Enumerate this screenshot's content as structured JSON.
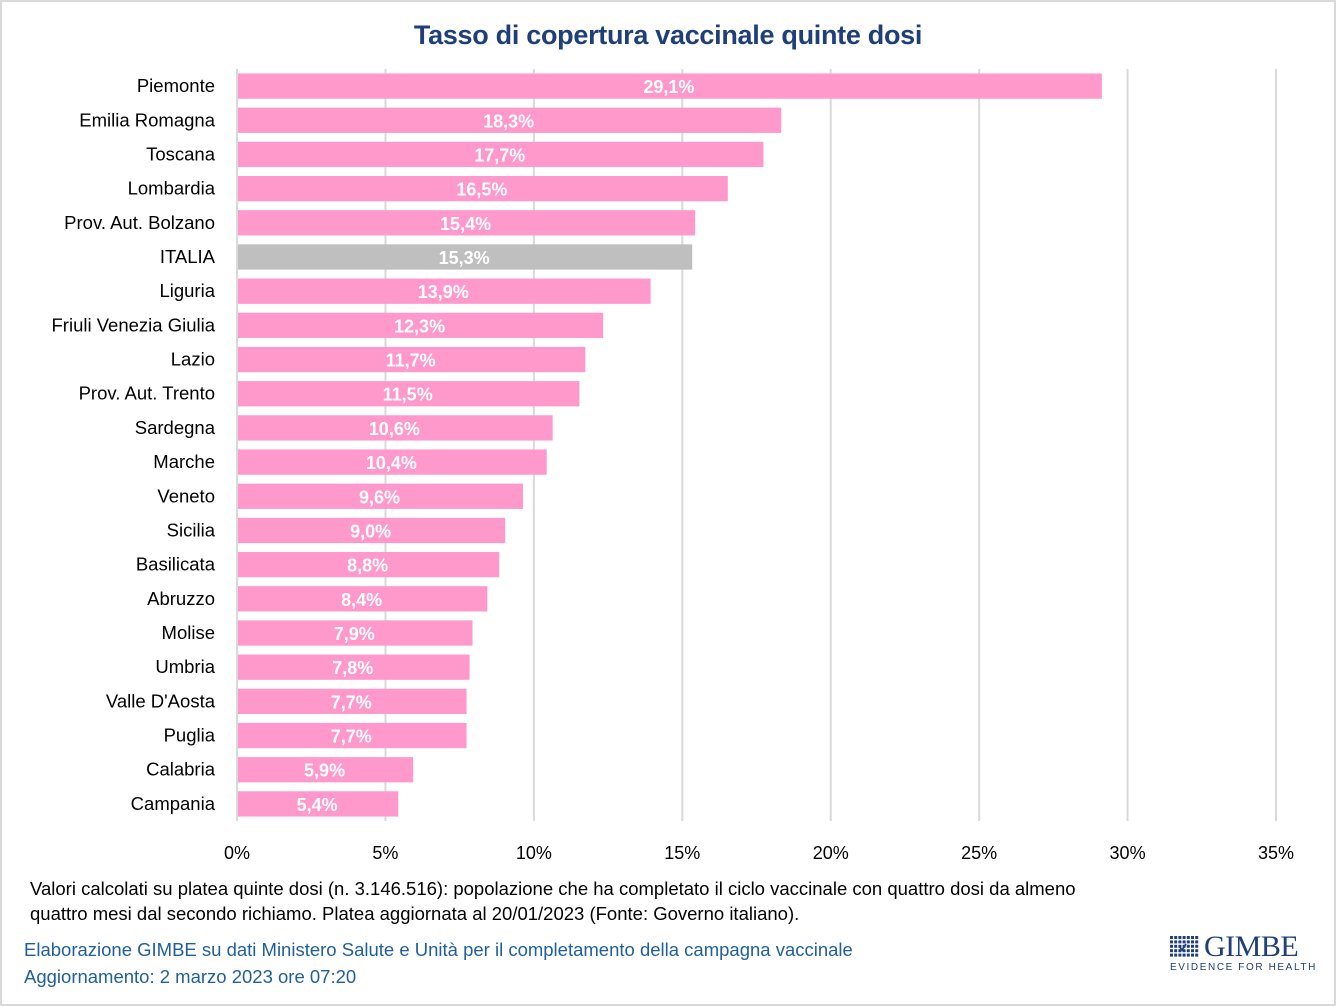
{
  "chart_data": {
    "type": "bar",
    "orientation": "horizontal",
    "title": "Tasso di copertura vaccinale quinte dosi",
    "xlabel": "",
    "ylabel": "",
    "xlim": [
      0,
      35
    ],
    "x_ticks": [
      0,
      5,
      10,
      15,
      20,
      25,
      30,
      35
    ],
    "x_tick_labels": [
      "0%",
      "5%",
      "10%",
      "15%",
      "20%",
      "25%",
      "30%",
      "35%"
    ],
    "grid": "vertical",
    "legend": "none",
    "categories": [
      "Piemonte",
      "Emilia Romagna",
      "Toscana",
      "Lombardia",
      "Prov. Aut. Bolzano",
      "ITALIA",
      "Liguria",
      "Friuli Venezia Giulia",
      "Lazio",
      "Prov. Aut. Trento",
      "Sardegna",
      "Marche",
      "Veneto",
      "Sicilia",
      "Basilicata",
      "Abruzzo",
      "Molise",
      "Umbria",
      "Valle D'Aosta",
      "Puglia",
      "Calabria",
      "Campania"
    ],
    "values": [
      29.1,
      18.3,
      17.7,
      16.5,
      15.4,
      15.3,
      13.9,
      12.3,
      11.7,
      11.5,
      10.6,
      10.4,
      9.6,
      9.0,
      8.8,
      8.4,
      7.9,
      7.8,
      7.7,
      7.7,
      5.9,
      5.4
    ],
    "data_labels": [
      "29,1%",
      "18,3%",
      "17,7%",
      "16,5%",
      "15,4%",
      "15,3%",
      "13,9%",
      "12,3%",
      "11,7%",
      "11,5%",
      "10,6%",
      "10,4%",
      "9,6%",
      "9,0%",
      "8,8%",
      "8,4%",
      "7,9%",
      "7,8%",
      "7,7%",
      "7,7%",
      "5,9%",
      "5,4%"
    ],
    "highlight_category": "ITALIA",
    "colors": {
      "bar": "#ff99cc",
      "highlight": "#bfbfbf",
      "grid": "#d9d9d9",
      "label": "#ffffff"
    }
  },
  "footer": {
    "note_line1": "Valori calcolati su platea quinte dosi (n. 3.146.516): popolazione che ha completato il ciclo vaccinale con quattro dosi da almeno",
    "note_line2": "quattro mesi dal secondo richiamo. Platea aggiornata al 20/01/2023 (Fonte: Governo italiano).",
    "credit_line1": "Elaborazione GIMBE su dati Ministero Salute e Unità per il completamento della campagna vaccinale",
    "credit_line2": "Aggiornamento: 2 marzo 2023 ore 07:20"
  },
  "logo": {
    "name": "GIMBE",
    "tagline": "EVIDENCE FOR HEALTH"
  }
}
